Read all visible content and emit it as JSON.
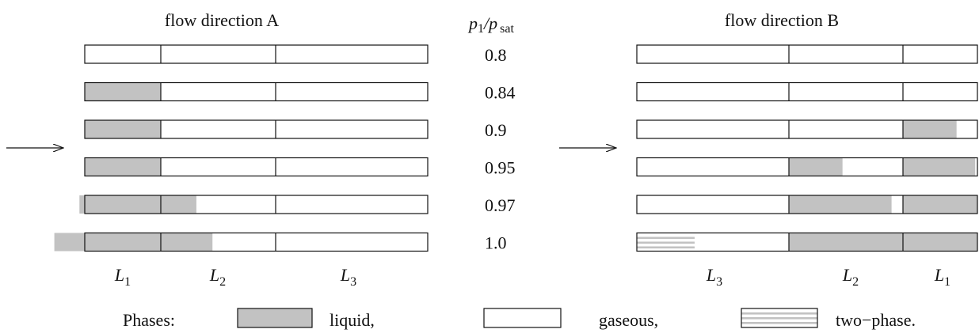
{
  "title_a": "flow direction A",
  "title_b": "flow direction B",
  "ratio_header": {
    "p": "p",
    "one": "1",
    "slash": "/",
    "sat": "sat"
  },
  "ratios": [
    "0.8",
    "0.84",
    "0.9",
    "0.95",
    "0.97",
    "1.0"
  ],
  "section_labels_a": [
    {
      "letter": "L",
      "sub": "1"
    },
    {
      "letter": "L",
      "sub": "2"
    },
    {
      "letter": "L",
      "sub": "3"
    }
  ],
  "section_labels_b": [
    {
      "letter": "L",
      "sub": "3"
    },
    {
      "letter": "L",
      "sub": "2"
    },
    {
      "letter": "L",
      "sub": "1"
    }
  ],
  "legend": {
    "title": "Phases:",
    "items": [
      {
        "key": "liquid",
        "label": "liquid,"
      },
      {
        "key": "gaseous",
        "label": "gaseous,"
      },
      {
        "key": "two_phase",
        "label": "two−phase."
      }
    ]
  },
  "colors": {
    "liquid": "#c2c2c2",
    "gas": "#ffffff",
    "border": "#111111"
  },
  "phase_fill": {
    "note_units": "liquid extent as fraction of each section's length, measured from the section's inlet side",
    "direction_a": [
      {
        "ratio": "0.8",
        "L1": 0,
        "L2": 0,
        "L3": 0,
        "upstream_liquid": 0
      },
      {
        "ratio": "0.84",
        "L1": 1.0,
        "L2": 0,
        "L3": 0,
        "upstream_liquid": 0
      },
      {
        "ratio": "0.9",
        "L1": 1.0,
        "L2": 0,
        "L3": 0,
        "upstream_liquid": 0
      },
      {
        "ratio": "0.95",
        "L1": 1.0,
        "L2": 0,
        "L3": 0,
        "upstream_liquid": 0
      },
      {
        "ratio": "0.97",
        "L1": 1.0,
        "L2": 0.31,
        "L3": 0,
        "upstream_liquid": 0.07
      },
      {
        "ratio": "1.0",
        "L1": 1.0,
        "L2": 0.45,
        "L3": 0,
        "upstream_liquid": 0.4
      }
    ],
    "direction_b": [
      {
        "ratio": "0.8",
        "L3": 0,
        "L2": 0,
        "L1": 0,
        "L3_two_phase": 0
      },
      {
        "ratio": "0.84",
        "L3": 0,
        "L2": 0,
        "L1": 0,
        "L3_two_phase": 0
      },
      {
        "ratio": "0.9",
        "L3": 0,
        "L2": 0,
        "L1": 0.72,
        "L3_two_phase": 0
      },
      {
        "ratio": "0.95",
        "L3": 0,
        "L2": 0.47,
        "L1": 0.97,
        "L3_two_phase": 0
      },
      {
        "ratio": "0.97",
        "L3": 0,
        "L2": 0.9,
        "L1": 1.0,
        "L3_two_phase": 0
      },
      {
        "ratio": "1.0",
        "L3": 0,
        "L2": 1.0,
        "L1": 1.0,
        "L3_two_phase": 0.38
      }
    ]
  }
}
